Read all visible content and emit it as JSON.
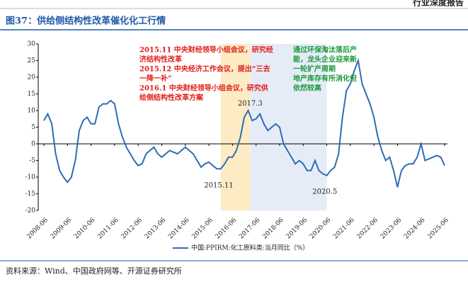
{
  "header": "行业深度报告",
  "chart_data": {
    "type": "line",
    "title": "图37：供给侧结构性改革催化化工行情",
    "source": "资料来源：Wind、中国政府网等、开源证券研究所",
    "x": [
      "2008-06",
      "2008-08",
      "2008-10",
      "2008-12",
      "2009-02",
      "2009-04",
      "2009-06",
      "2009-08",
      "2009-10",
      "2009-12",
      "2010-02",
      "2010-04",
      "2010-06",
      "2010-08",
      "2010-10",
      "2010-12",
      "2011-02",
      "2011-04",
      "2011-06",
      "2011-08",
      "2011-10",
      "2011-12",
      "2012-02",
      "2012-04",
      "2012-06",
      "2012-08",
      "2012-10",
      "2012-12",
      "2013-02",
      "2013-04",
      "2013-06",
      "2013-08",
      "2013-10",
      "2013-12",
      "2014-02",
      "2014-04",
      "2014-06",
      "2014-08",
      "2014-10",
      "2014-12",
      "2015-02",
      "2015-04",
      "2015-06",
      "2015-08",
      "2015-10",
      "2015-12",
      "2016-02",
      "2016-04",
      "2016-06",
      "2016-08",
      "2016-10",
      "2016-12",
      "2017-02",
      "2017-04",
      "2017-06",
      "2017-08",
      "2017-10",
      "2017-12",
      "2018-02",
      "2018-04",
      "2018-06",
      "2018-08",
      "2018-10",
      "2018-12",
      "2019-02",
      "2019-04",
      "2019-06",
      "2019-08",
      "2019-10",
      "2019-12",
      "2020-02",
      "2020-04",
      "2020-06",
      "2020-08",
      "2020-10",
      "2020-12",
      "2021-02",
      "2021-04",
      "2021-06",
      "2021-08",
      "2021-10",
      "2021-12",
      "2022-02",
      "2022-04",
      "2022-06",
      "2022-08",
      "2022-10",
      "2022-12",
      "2023-02",
      "2023-04",
      "2023-06",
      "2023-08",
      "2023-10",
      "2023-12",
      "2024-02",
      "2024-04",
      "2024-06",
      "2024-08",
      "2024-10",
      "2024-12",
      "2025-02",
      "2025-04",
      "2025-06"
    ],
    "series": [
      {
        "name": "中国:PPIRM:化工原料类:当月同比（%）",
        "color": "#2e6db4",
        "values": [
          7,
          9,
          6,
          -3,
          -8,
          -10,
          -11.5,
          -10,
          -5,
          4,
          7,
          8,
          6,
          6,
          11,
          12,
          12,
          13,
          12,
          6,
          2,
          -1,
          -3,
          -5,
          -6.5,
          -6,
          -3,
          -2,
          -1,
          -3,
          -4,
          -3,
          -2,
          -2.5,
          -3,
          -2,
          -1,
          -2,
          -3,
          -5,
          -7,
          -6,
          -5.5,
          -6.5,
          -7.5,
          -7.5,
          -6,
          -4,
          -4,
          -2,
          2,
          8,
          10,
          7,
          7.5,
          9,
          6,
          4,
          5,
          6,
          5,
          0,
          -2,
          -4,
          -6,
          -5,
          -6,
          -8,
          -8,
          -5,
          -8,
          -9,
          -9.5,
          -8,
          -7,
          -3,
          8,
          16,
          18,
          22,
          25,
          18,
          15,
          12,
          8,
          2,
          -2,
          -5,
          -4,
          -8,
          -13,
          -8,
          -6.5,
          -6,
          -6,
          -4,
          0,
          -5,
          -4.5,
          -4,
          -3.5,
          -4,
          -6.5
        ]
      }
    ],
    "xticks": [
      "2008-06",
      "2009-06",
      "2010-06",
      "2011-06",
      "2012-06",
      "2013-06",
      "2014-06",
      "2015-06",
      "2016-06",
      "2017-06",
      "2018-06",
      "2019-06",
      "2020-06",
      "2021-06",
      "2022-06",
      "2023-06",
      "2024-06",
      "2025-06"
    ],
    "ylim": [
      -20,
      30
    ],
    "yticks": [
      -20,
      -15,
      -10,
      -5,
      0,
      5,
      10,
      15,
      20,
      25,
      30
    ],
    "bands": [
      {
        "from": "2015-12",
        "to": "2017-03",
        "color": "#fdebc4"
      },
      {
        "from": "2017-03",
        "to": "2020-06",
        "color": "#e6ecf7"
      }
    ],
    "annotations": [
      {
        "text": "2015.11",
        "x": "2015-11",
        "y": -12.5,
        "color": "#222"
      },
      {
        "text": "2017.3",
        "x": "2017-03",
        "y": 12,
        "color": "#222"
      },
      {
        "text": "2020.5",
        "x": "2020-05",
        "y": -14.5,
        "color": "#222"
      }
    ],
    "notes": [
      {
        "lines": [
          "2015.11 中央财经领导小组会议，研究经",
          "济结构性改革",
          "2015.12 中央经济工作会议，提出“三去",
          "一降一补”",
          "2016.1 中央财经领导小组会议，研究供",
          "给侧结构性改革方案"
        ],
        "color": "#e0201b"
      },
      {
        "lines": [
          "通过环保淘汰落后产",
          "能，龙头企业迎来新",
          "一轮扩产周期",
          "地产库存有所消化但",
          "依然较高"
        ],
        "color": "#1a9a3a"
      }
    ]
  }
}
